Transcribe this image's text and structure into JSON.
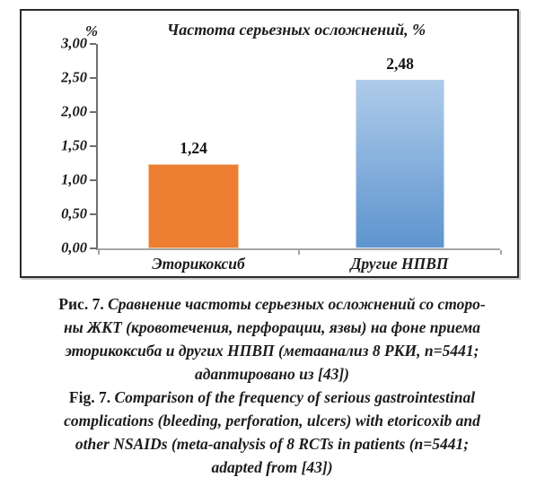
{
  "chart_data": {
    "type": "bar",
    "title": "Частота серьезных осложнений, %",
    "ylabel": "%",
    "xlabel": "",
    "categories": [
      "Эторикоксиб",
      "Другие НПВП"
    ],
    "values": [
      1.24,
      2.48
    ],
    "value_labels": [
      "1,24",
      "2,48"
    ],
    "ylim": [
      0,
      3
    ],
    "ytick_step": 0.5,
    "ytick_labels": [
      "3,00",
      "2,50",
      "2,00",
      "1,50",
      "1,00",
      "0,50",
      "0,00"
    ],
    "grid": false,
    "legend_position": "none",
    "bar_colors": {
      "etoricoxib": "#ED7D31",
      "other_nsaids_top": "#AECBEA",
      "other_nsaids_bottom": "#5E94CF"
    },
    "axis_color": "#A6A6A6"
  },
  "caption_ru": {
    "prefix": "Рис. 7.",
    "line1_rest": " Сравнение частоты серьезных осложнений со сторо-",
    "line2": "ны ЖКТ (кровотечения, перфорации, язвы) на фоне приема",
    "line3": "эторикоксиба и других НПВП (метаанализ 8 РКИ, n=5441;",
    "line4": "адаптировано из [43])"
  },
  "caption_en": {
    "prefix": "Fig. 7.",
    "line1_rest": " Comparison of the frequency of serious gastrointestinal",
    "line2": "complications (bleeding, perforation, ulcers) with etoricoxib and",
    "line3": "other NSAIDs (meta-analysis of 8 RCTs in patients (n=5441;",
    "line4": "adapted from [43])"
  }
}
